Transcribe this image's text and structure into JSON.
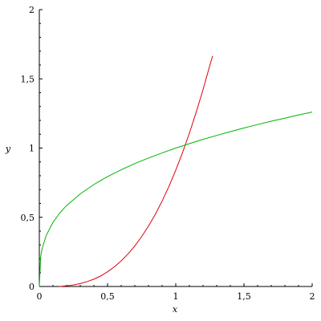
{
  "chart_data": {
    "type": "line",
    "title": "",
    "xlabel": "x",
    "ylabel": "y",
    "xlim": [
      0,
      2
    ],
    "ylim": [
      0,
      2
    ],
    "grid": false,
    "legend": "none",
    "x_ticks": [
      {
        "value": 0,
        "label": "0"
      },
      {
        "value": 0.5,
        "label": "0,5"
      },
      {
        "value": 1,
        "label": "1"
      },
      {
        "value": 1.5,
        "label": "1,5"
      },
      {
        "value": 2,
        "label": "2"
      }
    ],
    "y_ticks": [
      {
        "value": 0,
        "label": "0"
      },
      {
        "value": 0.5,
        "label": "0,5"
      },
      {
        "value": 1,
        "label": "1"
      },
      {
        "value": 1.5,
        "label": "1,5"
      },
      {
        "value": 2,
        "label": "2"
      }
    ],
    "series": [
      {
        "color": "#e0000c",
        "x": [
          0.15,
          0.2,
          0.25,
          0.3,
          0.35,
          0.4,
          0.45,
          0.5,
          0.55,
          0.6,
          0.65,
          0.7,
          0.75,
          0.8,
          0.85,
          0.9,
          0.95,
          1.0,
          1.05,
          1.1,
          1.15,
          1.2,
          1.25,
          1.27
        ],
        "y": [
          0.0,
          0.005,
          0.011,
          0.021,
          0.035,
          0.053,
          0.076,
          0.106,
          0.142,
          0.185,
          0.235,
          0.293,
          0.36,
          0.436,
          0.521,
          0.617,
          0.723,
          0.84,
          0.968,
          1.108,
          1.259,
          1.422,
          1.598,
          1.665
        ]
      },
      {
        "color": "#00b400",
        "x": [
          0.0,
          0.01,
          0.02,
          0.05,
          0.1,
          0.15,
          0.2,
          0.3,
          0.4,
          0.5,
          0.6,
          0.7,
          0.8,
          0.9,
          1.0,
          1.1,
          1.2,
          1.3,
          1.4,
          1.5,
          1.6,
          1.7,
          1.8,
          1.9,
          2.0
        ],
        "y": [
          0.0,
          0.215,
          0.271,
          0.368,
          0.464,
          0.531,
          0.585,
          0.669,
          0.737,
          0.794,
          0.843,
          0.888,
          0.928,
          0.965,
          1.0,
          1.032,
          1.063,
          1.091,
          1.119,
          1.145,
          1.17,
          1.194,
          1.216,
          1.239,
          1.26
        ]
      }
    ]
  }
}
